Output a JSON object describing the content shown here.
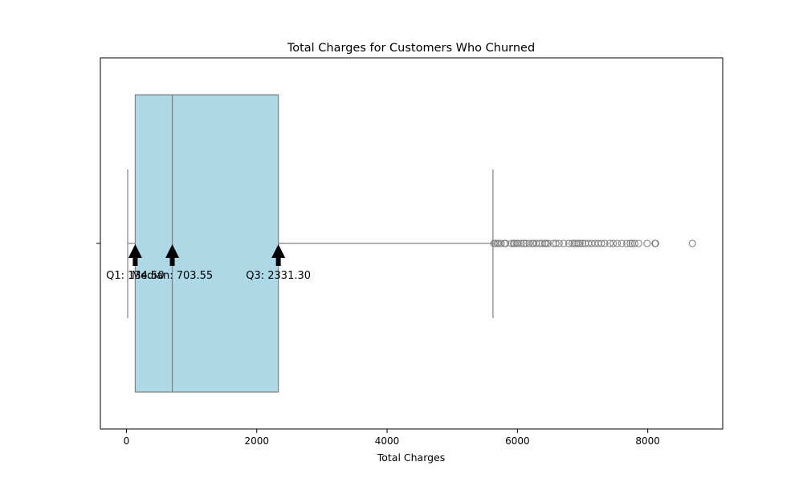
{
  "chart_data": {
    "type": "box",
    "title": "Total Charges for Customers Who Churned",
    "xlabel": "Total Charges",
    "ylabel": "",
    "orientation": "horizontal",
    "xlim": [
      -400,
      9150
    ],
    "xticks": [
      0,
      2000,
      4000,
      6000,
      8000
    ],
    "xtick_labels": [
      "0",
      "2000",
      "4000",
      "6000",
      "8000"
    ],
    "box": {
      "whisker_low": 18.85,
      "q1": 134.5,
      "median": 703.55,
      "q3": 2331.3,
      "whisker_high": 5624.85
    },
    "outliers": [
      5640,
      5660,
      5690,
      5710,
      5750,
      5800,
      5820,
      5910,
      5940,
      5960,
      5990,
      6010,
      6060,
      6100,
      6130,
      6180,
      6230,
      6250,
      6290,
      6340,
      6380,
      6420,
      6440,
      6470,
      6550,
      6590,
      6640,
      6710,
      6790,
      6840,
      6870,
      6900,
      6930,
      6960,
      7000,
      7040,
      7090,
      7140,
      7190,
      7240,
      7290,
      7340,
      7420,
      7470,
      7530,
      7600,
      7680,
      7730,
      7760,
      7800,
      7860,
      7990,
      8110,
      8120,
      8685
    ],
    "box_color": "#add8e6",
    "line_color": "#808080",
    "annotations": [
      {
        "label": "Q1: 134.50",
        "value": 134.5
      },
      {
        "label": "Median: 703.55",
        "value": 703.55
      },
      {
        "label": "Q3: 2331.30",
        "value": 2331.3
      }
    ]
  }
}
